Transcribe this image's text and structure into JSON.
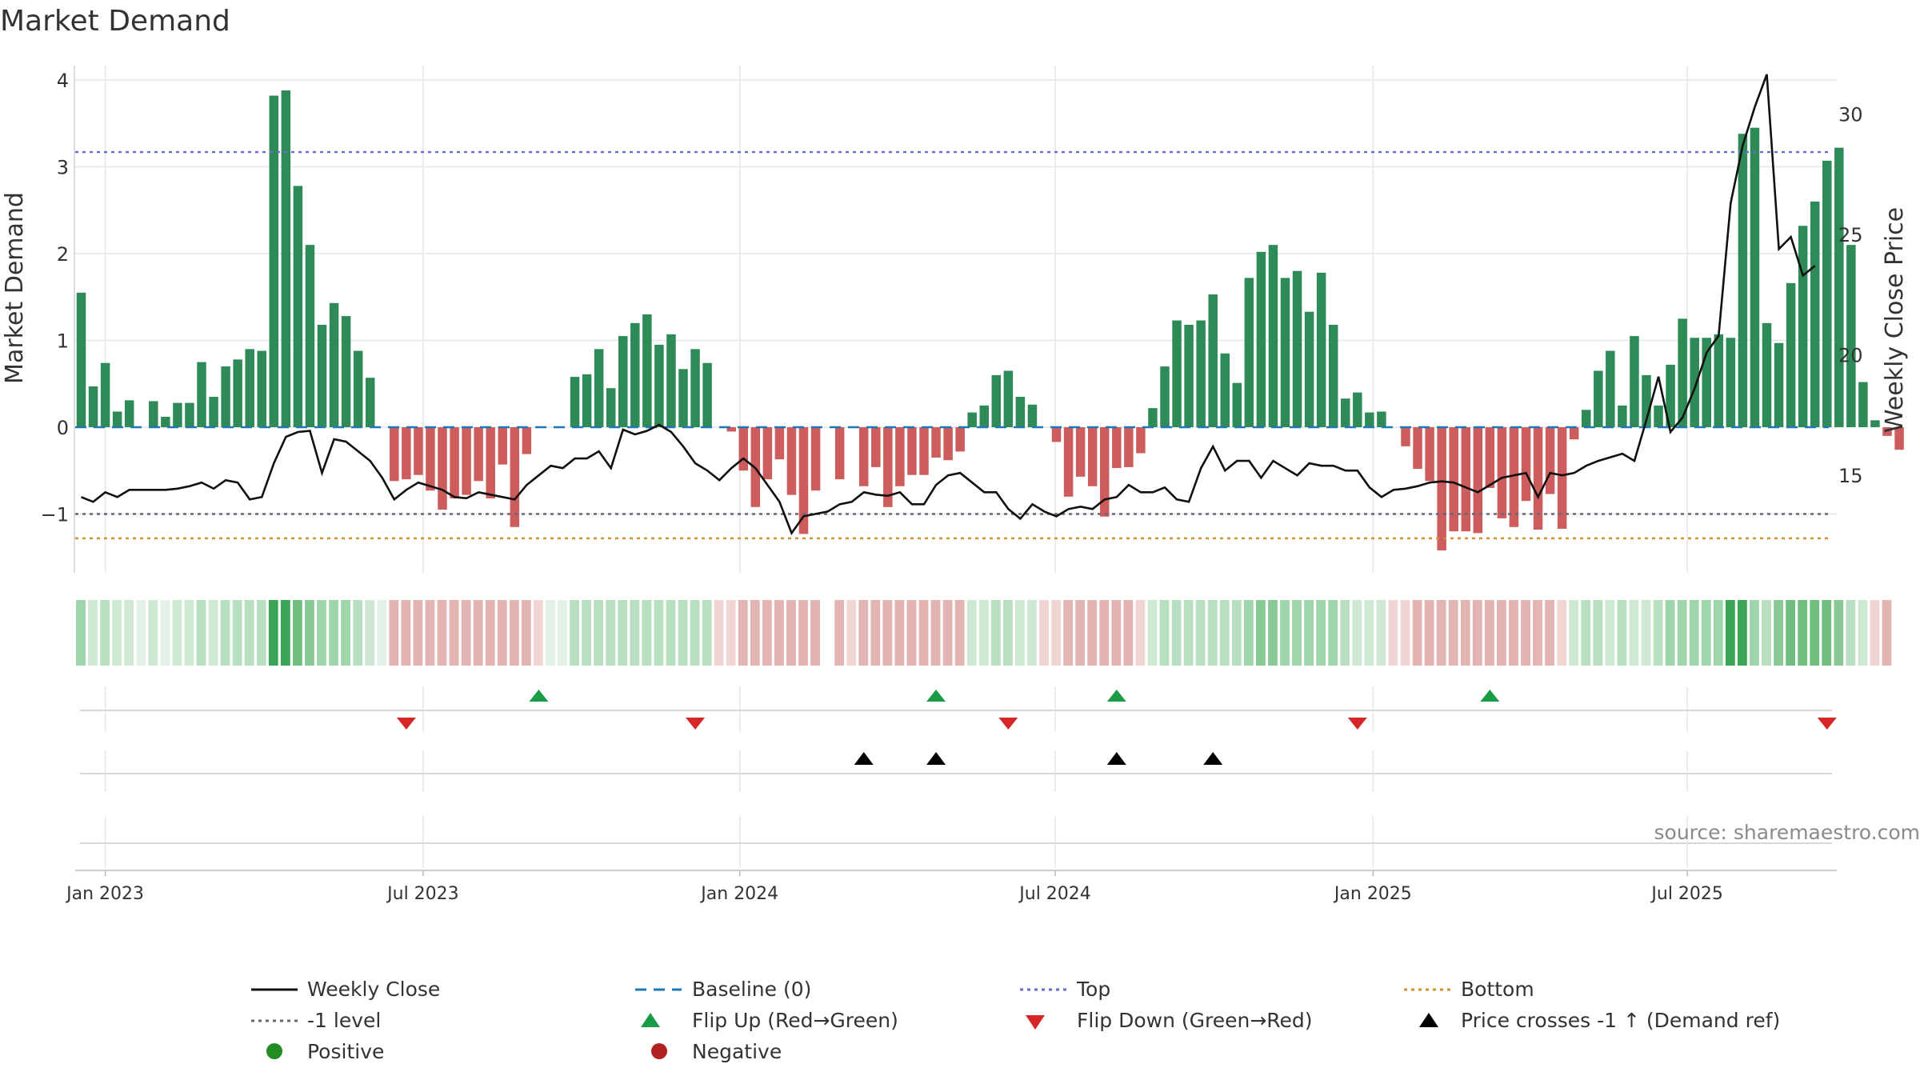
{
  "chart_data": {
    "type": "bar+line",
    "title": "Market Demand",
    "ylabel_left": "Market Demand",
    "ylabel_right": "Weekly Close Price",
    "source": "source: sharemaestro.com",
    "y_left_range": [
      -1.75,
      4.15
    ],
    "y_left_ticks": [
      "−1",
      "0",
      "1",
      "2",
      "3",
      "4"
    ],
    "y_left_tick_values": [
      -1,
      0,
      1,
      2,
      3,
      4
    ],
    "y_right_range": [
      11.2,
      32.4
    ],
    "y_right_ticks": [
      "15",
      "20",
      "25",
      "30"
    ],
    "y_right_tick_values": [
      15,
      20,
      25,
      30
    ],
    "x_start": "2022-12-19",
    "week_count": 146,
    "x_tick_labels": [
      "Jan 2023",
      "Jul 2023",
      "Jan 2024",
      "Jul 2024",
      "Jan 2025",
      "Jul 2025"
    ],
    "x_tick_weeks": [
      2,
      28.4,
      54.7,
      80.9,
      107.3,
      133.4
    ],
    "demand": [
      1.55,
      0.47,
      0.74,
      0.18,
      0.31,
      0,
      0.3,
      0.12,
      0.28,
      0.28,
      0.75,
      0.35,
      0.7,
      0.78,
      0.9,
      0.88,
      3.82,
      3.88,
      2.78,
      2.1,
      1.18,
      1.43,
      1.28,
      0.88,
      0.57,
      0,
      -0.62,
      -0.6,
      -0.55,
      -0.73,
      -0.95,
      -0.82,
      -0.78,
      -0.62,
      -0.82,
      -0.43,
      -1.15,
      -0.31,
      0,
      0,
      0,
      0.58,
      0.61,
      0.9,
      0.45,
      1.05,
      1.2,
      1.3,
      0.95,
      1.07,
      0.67,
      0.9,
      0.74,
      0,
      -0.05,
      -0.5,
      -0.92,
      -0.6,
      -0.37,
      -0.78,
      -1.23,
      -0.73,
      0,
      -0.6,
      0,
      -0.68,
      -0.46,
      -0.92,
      -0.68,
      -0.55,
      -0.55,
      -0.35,
      -0.38,
      -0.28,
      0.17,
      0.25,
      0.6,
      0.65,
      0.35,
      0.26,
      0,
      -0.17,
      -0.8,
      -0.57,
      -0.68,
      -1.03,
      -0.47,
      -0.46,
      -0.3,
      0.22,
      0.7,
      1.23,
      1.18,
      1.23,
      1.53,
      0.85,
      0.51,
      1.72,
      2.02,
      2.1,
      1.72,
      1.8,
      1.33,
      1.78,
      1.18,
      0.33,
      0.4,
      0.17,
      0.18,
      0,
      -0.22,
      -0.48,
      -0.62,
      -1.42,
      -1.2,
      -1.2,
      -1.22,
      -0.7,
      -1.05,
      -1.15,
      -0.85,
      -1.18,
      -0.77,
      -1.17,
      -0.14,
      0.2,
      0.65,
      0.88,
      0.25,
      1.05,
      0.6,
      0.25,
      0.72,
      1.25,
      1.03,
      1.03,
      1.07,
      1.03,
      3.38,
      3.45,
      1.2,
      0.97,
      1.66,
      2.32,
      2.6,
      3.07,
      3.22,
      2.1,
      0.52,
      0.08,
      -0.1,
      -0.26
    ],
    "close": [
      14.1,
      13.9,
      14.3,
      14.1,
      14.4,
      14.4,
      14.4,
      14.4,
      14.45,
      14.55,
      14.7,
      14.45,
      14.8,
      14.7,
      14.0,
      14.1,
      15.5,
      16.6,
      16.8,
      16.85,
      15.1,
      16.5,
      16.4,
      16.0,
      15.6,
      14.9,
      14.0,
      14.4,
      14.7,
      14.55,
      14.4,
      14.1,
      14.05,
      14.3,
      14.2,
      14.1,
      14.0,
      14.6,
      15.0,
      15.4,
      15.3,
      15.7,
      15.7,
      16.0,
      15.3,
      16.9,
      16.7,
      16.85,
      17.1,
      16.8,
      16.2,
      15.5,
      15.2,
      14.8,
      15.3,
      15.7,
      15.3,
      14.6,
      13.9,
      12.6,
      13.3,
      13.4,
      13.5,
      13.8,
      13.9,
      14.3,
      14.2,
      14.15,
      14.3,
      13.8,
      13.8,
      14.6,
      15.0,
      15.1,
      14.7,
      14.3,
      14.3,
      13.6,
      13.2,
      13.8,
      13.5,
      13.3,
      13.6,
      13.7,
      13.6,
      14.0,
      14.1,
      14.6,
      14.3,
      14.3,
      14.5,
      14.0,
      13.9,
      15.3,
      16.2,
      15.2,
      15.6,
      15.6,
      14.9,
      15.6,
      15.3,
      15.0,
      15.5,
      15.4,
      15.4,
      15.2,
      15.2,
      14.5,
      14.1,
      14.4,
      14.45,
      14.55,
      14.7,
      14.75,
      14.7,
      14.5,
      14.3,
      14.6,
      14.9,
      15.0,
      15.1,
      14.1,
      15.1,
      15.0,
      15.1,
      15.4,
      15.6,
      15.75,
      15.9,
      15.6,
      17.3,
      19.1,
      16.8,
      17.4,
      18.6,
      20.1,
      20.8,
      26.3,
      28.7,
      30.3,
      31.65,
      24.4,
      24.9,
      23.3,
      23.7
    ],
    "regime_colors": [
      "#9fd5aa",
      "#cfe8d3",
      "#b8dfc0",
      "#cfe8d3",
      "#cfe8d3",
      "#e4f1e6",
      "#cfe8d3",
      "#e4f1e6",
      "#cfe8d3",
      "#cfe8d3",
      "#b8dfc0",
      "#cfe8d3",
      "#b8dfc0",
      "#b8dfc0",
      "#b8dfc0",
      "#b8dfc0",
      "#3aa655",
      "#3aa655",
      "#6fbe80",
      "#88c996",
      "#9fd5aa",
      "#9fd5aa",
      "#9fd5aa",
      "#b8dfc0",
      "#cfe8d3",
      "#e4f1e6",
      "#e2b5b3",
      "#e2b5b3",
      "#e2b5b3",
      "#e2b5b3",
      "#e2b5b3",
      "#e2b5b3",
      "#e2b5b3",
      "#e2b5b3",
      "#e2b5b3",
      "#e2b5b3",
      "#e2b5b3",
      "#e2b5b3",
      "#f0d5d4",
      "#e4f1e6",
      "#e4f1e6",
      "#b8dfc0",
      "#b8dfc0",
      "#b8dfc0",
      "#b8dfc0",
      "#b8dfc0",
      "#b8dfc0",
      "#b8dfc0",
      "#b8dfc0",
      "#b8dfc0",
      "#b8dfc0",
      "#b8dfc0",
      "#b8dfc0",
      "#f0d5d4",
      "#f0d5d4",
      "#e2b5b3",
      "#e2b5b3",
      "#e2b5b3",
      "#e2b5b3",
      "#e2b5b3",
      "#e2b5b3",
      "#e2b5b3",
      "#ffffff",
      "#e2b5b3",
      "#f0d5d4",
      "#e2b5b3",
      "#e2b5b3",
      "#e2b5b3",
      "#e2b5b3",
      "#e2b5b3",
      "#e2b5b3",
      "#e2b5b3",
      "#e2b5b3",
      "#e2b5b3",
      "#cfe8d3",
      "#cfe8d3",
      "#b8dfc0",
      "#b8dfc0",
      "#cfe8d3",
      "#cfe8d3",
      "#f0d5d4",
      "#f0d5d4",
      "#e2b5b3",
      "#e2b5b3",
      "#e2b5b3",
      "#e2b5b3",
      "#e2b5b3",
      "#e2b5b3",
      "#f0d5d4",
      "#cfe8d3",
      "#b8dfc0",
      "#b8dfc0",
      "#b8dfc0",
      "#b8dfc0",
      "#b8dfc0",
      "#b8dfc0",
      "#b8dfc0",
      "#9fd5aa",
      "#88c996",
      "#88c996",
      "#9fd5aa",
      "#9fd5aa",
      "#9fd5aa",
      "#9fd5aa",
      "#9fd5aa",
      "#b8dfc0",
      "#cfe8d3",
      "#cfe8d3",
      "#cfe8d3",
      "#f0d5d4",
      "#f0d5d4",
      "#e2b5b3",
      "#e2b5b3",
      "#e2b5b3",
      "#e2b5b3",
      "#e2b5b3",
      "#e2b5b3",
      "#e2b5b3",
      "#e2b5b3",
      "#e2b5b3",
      "#e2b5b3",
      "#e2b5b3",
      "#e2b5b3",
      "#f0d5d4",
      "#cfe8d3",
      "#b8dfc0",
      "#b8dfc0",
      "#cfe8d3",
      "#b8dfc0",
      "#cfe8d3",
      "#cfe8d3",
      "#b8dfc0",
      "#9fd5aa",
      "#9fd5aa",
      "#9fd5aa",
      "#9fd5aa",
      "#9fd5aa",
      "#3aa655",
      "#3aa655",
      "#9fd5aa",
      "#b8dfc0",
      "#88c996",
      "#6fbe80",
      "#6fbe80",
      "#6fbe80",
      "#6fbe80",
      "#88c996",
      "#b8dfc0",
      "#cfe8d3",
      "#f0d5d4",
      "#e2b5b3"
    ],
    "reference_lines": {
      "top": 3.17,
      "bottom": -1.28,
      "minus_one_level": -1,
      "baseline": 0
    },
    "flip_up_weeks": [
      38,
      71,
      86,
      117
    ],
    "flip_down_weeks": [
      27,
      51,
      77,
      106,
      145
    ],
    "price_cross_weeks": [
      65,
      71,
      86,
      94
    ],
    "colors": {
      "positive": "#2e8b57",
      "negative": "#cd5c5c",
      "close": "#111111",
      "baseline": "#1f77b4",
      "top": "#6a6ad6",
      "bottom": "#d4902a",
      "minus_one": "#666677",
      "flip_up": "#1a9c47",
      "flip_down": "#d62728",
      "cross": "#000000",
      "grid": "#e6e6e6"
    },
    "legend": {
      "weekly_close": "Weekly Close",
      "baseline": "Baseline (0)",
      "top": "Top",
      "bottom": "Bottom",
      "minus_one": "-1 level",
      "flip_up": "Flip Up (Red→Green)",
      "flip_down": "Flip Down (Green→Red)",
      "price_cross": "Price crosses -1 ↑ (Demand ref)",
      "positive": "Positive",
      "negative": "Negative"
    },
    "legend_dot_colors": {
      "positive": "#228b22",
      "negative": "#b22222"
    }
  }
}
